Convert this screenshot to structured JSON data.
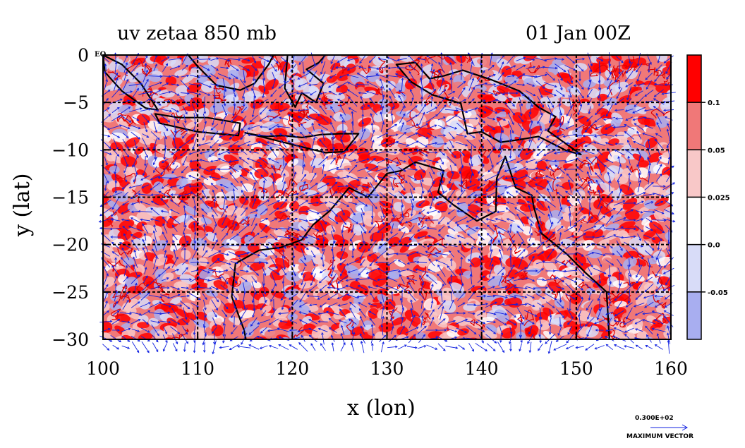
{
  "chart_data": {
    "type": "heatmap",
    "title": "uv zetaa 850 mb",
    "time_label": "01 Jan 00Z",
    "xlabel": "x (lon)",
    "ylabel": "y (lat)",
    "xlim": [
      100,
      160
    ],
    "ylim": [
      -30,
      0
    ],
    "x_ticks": [
      100,
      110,
      120,
      130,
      140,
      150,
      160
    ],
    "y_ticks": [
      0,
      -5,
      -10,
      -15,
      -20,
      -25,
      -30
    ],
    "y_tick_labels": [
      "0",
      "−5",
      "−10",
      "−15",
      "−20",
      "−25",
      "−30"
    ],
    "grid": true,
    "equator_label": "EQ",
    "colorbar": {
      "levels": [
        "0.1",
        "0.05",
        "0.025",
        "0.0",
        "-0.05"
      ],
      "colors": [
        "#ff0000",
        "#f07878",
        "#f8c8c8",
        "#ffffff",
        "#d8dcf8",
        "#a8aef0"
      ]
    },
    "vector_key": {
      "value_label": "0.300E+02",
      "caption": "MAXIMUM VECTOR"
    },
    "colors": {
      "strong_positive": "#ff0000",
      "positive": "#f07878",
      "weak_positive": "#f8c8c8",
      "neutral": "#ffffff",
      "weak_negative": "#d8dcf8",
      "negative": "#a8aef0",
      "contour_line": "#e00000",
      "vector": "#1020e0",
      "coastline": "#000000"
    }
  }
}
